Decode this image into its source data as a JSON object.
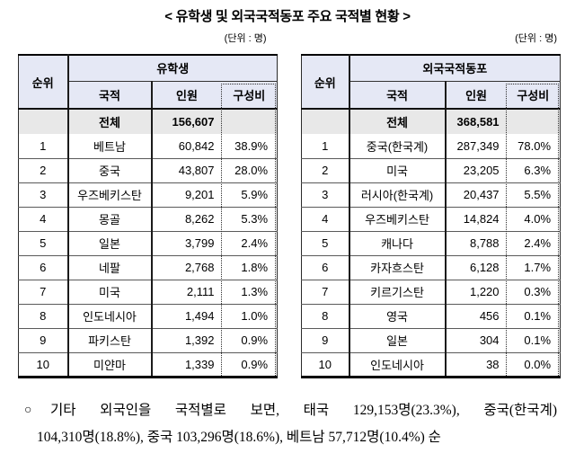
{
  "title": "< 유학생 및 외국국적동포 주요 국적별 현황 >",
  "unit_label_left": "(단위 : 명)",
  "unit_label_right": "(단위 : 명)",
  "colors": {
    "header_bg": "#e5e8f5",
    "total_row_bg": "#e8e8e8",
    "border_dark": "#000000",
    "row_line": "#5a5a5a"
  },
  "tables": [
    {
      "group_header": "유학생",
      "col_rank": "순위",
      "col_country": "국적",
      "col_count": "인원",
      "col_ratio": "구성비",
      "total_label": "전체",
      "total_count": "156,607",
      "rows": [
        {
          "rank": "1",
          "country": "베트남",
          "count": "60,842",
          "ratio": "38.9%"
        },
        {
          "rank": "2",
          "country": "중국",
          "count": "43,807",
          "ratio": "28.0%"
        },
        {
          "rank": "3",
          "country": "우즈베키스탄",
          "count": "9,201",
          "ratio": "5.9%"
        },
        {
          "rank": "4",
          "country": "몽골",
          "count": "8,262",
          "ratio": "5.3%"
        },
        {
          "rank": "5",
          "country": "일본",
          "count": "3,799",
          "ratio": "2.4%"
        },
        {
          "rank": "6",
          "country": "네팔",
          "count": "2,768",
          "ratio": "1.8%"
        },
        {
          "rank": "7",
          "country": "미국",
          "count": "2,111",
          "ratio": "1.3%"
        },
        {
          "rank": "8",
          "country": "인도네시아",
          "count": "1,494",
          "ratio": "1.0%"
        },
        {
          "rank": "9",
          "country": "파키스탄",
          "count": "1,392",
          "ratio": "0.9%"
        },
        {
          "rank": "10",
          "country": "미얀마",
          "count": "1,339",
          "ratio": "0.9%"
        }
      ]
    },
    {
      "group_header": "외국국적동포",
      "col_rank": "순위",
      "col_country": "국적",
      "col_count": "인원",
      "col_ratio": "구성비",
      "total_label": "전체",
      "total_count": "368,581",
      "rows": [
        {
          "rank": "1",
          "country": "중국(한국계)",
          "count": "287,349",
          "ratio": "78.0%"
        },
        {
          "rank": "2",
          "country": "미국",
          "count": "23,205",
          "ratio": "6.3%"
        },
        {
          "rank": "3",
          "country": "러시아(한국계)",
          "count": "20,437",
          "ratio": "5.5%"
        },
        {
          "rank": "4",
          "country": "우즈베키스탄",
          "count": "14,824",
          "ratio": "4.0%"
        },
        {
          "rank": "5",
          "country": "캐나다",
          "count": "8,788",
          "ratio": "2.4%"
        },
        {
          "rank": "6",
          "country": "카자흐스탄",
          "count": "6,128",
          "ratio": "1.7%"
        },
        {
          "rank": "7",
          "country": "키르기스탄",
          "count": "1,220",
          "ratio": "0.3%"
        },
        {
          "rank": "8",
          "country": "영국",
          "count": "456",
          "ratio": "0.1%"
        },
        {
          "rank": "9",
          "country": "일본",
          "count": "304",
          "ratio": "0.1%"
        },
        {
          "rank": "10",
          "country": "인도네시아",
          "count": "38",
          "ratio": "0.0%"
        }
      ]
    }
  ],
  "footnote": {
    "bullet": "○",
    "line1": "기타 외국인을 국적별로 보면, 태국 129,153명(23.3%), 중국(한국계)",
    "line2": "104,310명(18.8%), 중국 103,296명(18.6%), 베트남 57,712명(10.4%) 순"
  }
}
